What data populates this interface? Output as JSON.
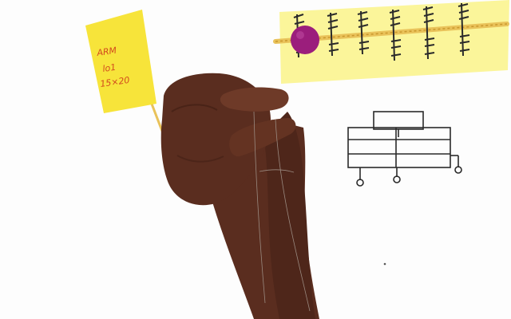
{
  "flag": {
    "line1": "ARM",
    "line2": "lo1",
    "line3": "15×20"
  },
  "colors": {
    "background": "#fdfdfd",
    "clay": "#5a2d1f",
    "clay_highlight": "#6e3a28",
    "flag_yellow": "#f7e43a",
    "note_yellow": "#fbf59a",
    "toothpick": "#e9c25a",
    "bead": "#9b1e7c",
    "ink": "#2a2a2a",
    "flag_text": "#d24a1e"
  },
  "icons": {
    "sticky_note": "sticky-note-icon",
    "bead": "bead-icon",
    "circuit_sketch": "circuit-sketch-icon"
  }
}
